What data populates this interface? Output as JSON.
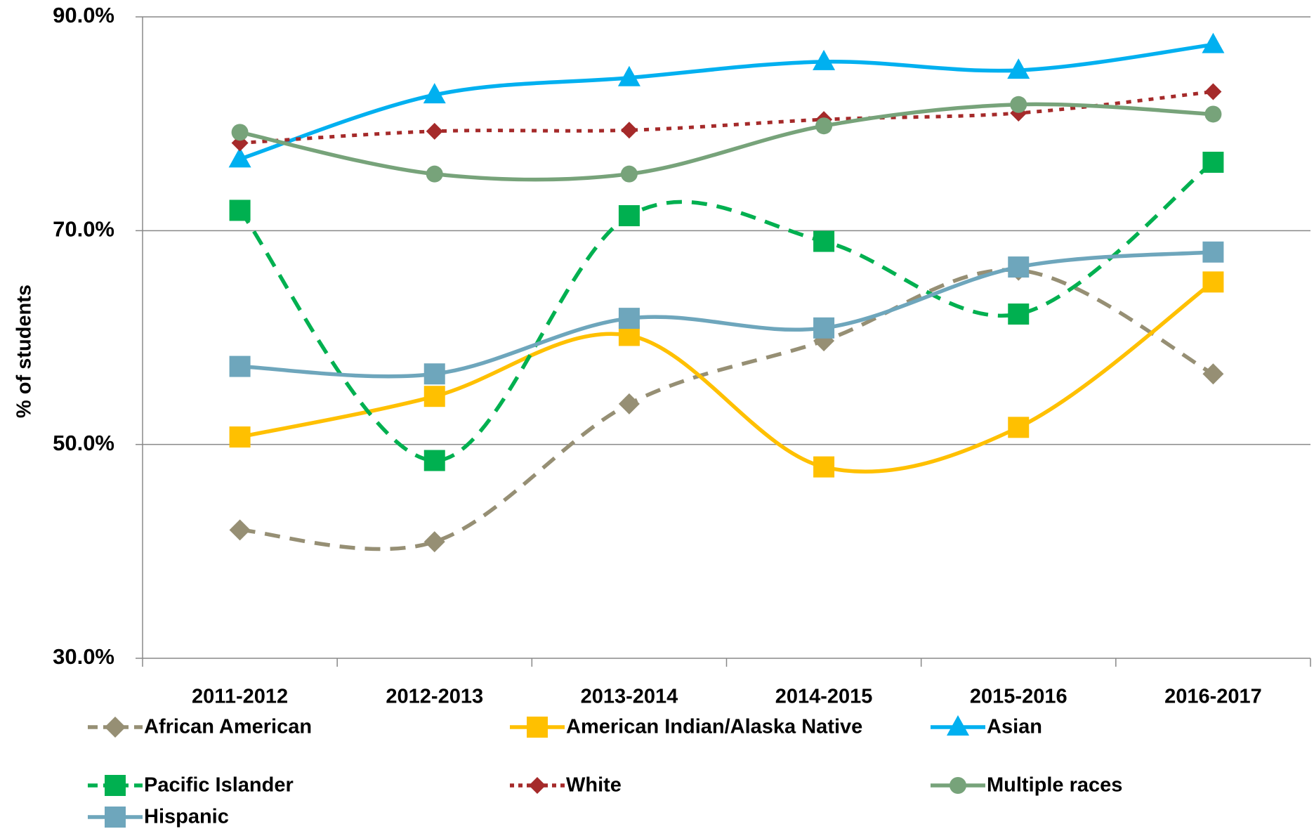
{
  "chart_data": {
    "type": "line",
    "y_label": "% of students",
    "categories": [
      "2011-2012",
      "2012-2013",
      "2013-2014",
      "2014-2015",
      "2015-2016",
      "2016-2017"
    ],
    "ylim": [
      30,
      90
    ],
    "yticks": [
      {
        "value": 30,
        "label": "30.0%"
      },
      {
        "value": 50,
        "label": "50.0%"
      },
      {
        "value": 70,
        "label": "70.0%"
      },
      {
        "value": 90,
        "label": "90.0%"
      }
    ],
    "grid": true,
    "smooth": true,
    "legend": "bottom",
    "series": [
      {
        "name": "African American",
        "color": "#968f74",
        "marker": "diamond",
        "dash": "dashed",
        "values": [
          42.0,
          40.9,
          53.8,
          59.7,
          66.3,
          56.6
        ]
      },
      {
        "name": "American Indian/Alaska Native",
        "color": "#ffc000",
        "marker": "square",
        "dash": "solid",
        "values": [
          50.7,
          54.5,
          60.2,
          47.9,
          51.6,
          65.2
        ]
      },
      {
        "name": "Asian",
        "color": "#00b0f0",
        "marker": "triangle",
        "dash": "solid",
        "values": [
          76.7,
          82.7,
          84.3,
          85.8,
          85.0,
          87.4
        ]
      },
      {
        "name": "Pacific Islander",
        "color": "#00b050",
        "marker": "square",
        "dash": "dashed",
        "values": [
          71.9,
          48.5,
          71.4,
          69.0,
          62.2,
          76.4
        ]
      },
      {
        "name": "White",
        "color": "#a52a2a",
        "marker": "diamond",
        "dash": "dotted",
        "values": [
          78.2,
          79.3,
          79.4,
          80.4,
          81.0,
          83.0
        ]
      },
      {
        "name": "Multiple races",
        "color": "#77a37a",
        "marker": "circle",
        "dash": "solid",
        "values": [
          79.2,
          75.3,
          75.3,
          79.8,
          81.8,
          80.9
        ]
      },
      {
        "name": "Hispanic",
        "color": "#6ea6bc",
        "marker": "square",
        "dash": "solid",
        "values": [
          57.3,
          56.6,
          61.8,
          60.9,
          66.6,
          68.0
        ]
      }
    ]
  }
}
